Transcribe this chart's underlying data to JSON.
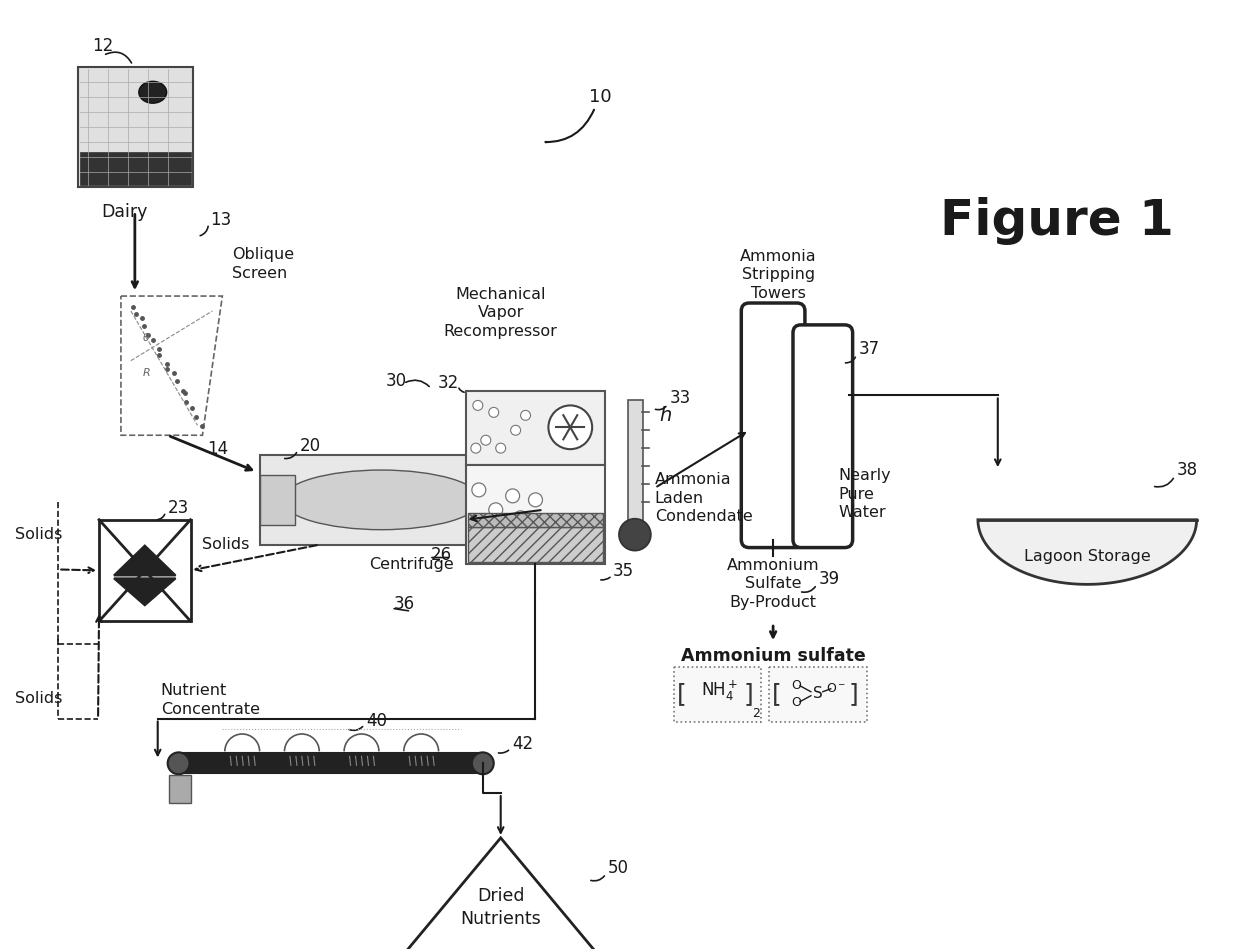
{
  "bg_color": "#ffffff",
  "line_color": "#1a1a1a",
  "fig_label": "Figure 1",
  "fig_number": "10",
  "dairy_label": "Dairy",
  "dairy_ref": "12",
  "oblique_screen_label": "Oblique\nScreen",
  "oblique_screen_ref": "13",
  "centrifuge_label": "Centrifuge",
  "centrifuge_ref": "20",
  "mvr_label": "Mechanical\nVapor\nRecompressor",
  "mvr_ref": "30",
  "evap_ref": "32",
  "therm_ref": "33",
  "heat_label": "h",
  "ammonia_cond_label": "Ammonia\nLaden\nCondendate",
  "effluent_ref": "26",
  "evap_out_ref": "35",
  "recycle_ref": "36",
  "tower_label": "Ammonia\nStripping\nTowers",
  "tower_ref": "37",
  "pure_water_label": "Nearly\nPure\nWater",
  "lagoon_label": "Lagoon Storage",
  "lagoon_ref": "38",
  "amsulf_label": "Ammonium\nSulfate\nBy-Product",
  "amsulf_ref": "39",
  "amsulf_formula": "Ammonium sulfate",
  "dryer_ref": "23",
  "solids1": "Solids",
  "solids2": "Solids",
  "solids3": "Solids",
  "nutrient_label": "Nutrient\nConcentrate",
  "spray_ref": "40",
  "belt_ref": "42",
  "dried_label": "Dried\nNutrients",
  "dried_ref": "50"
}
